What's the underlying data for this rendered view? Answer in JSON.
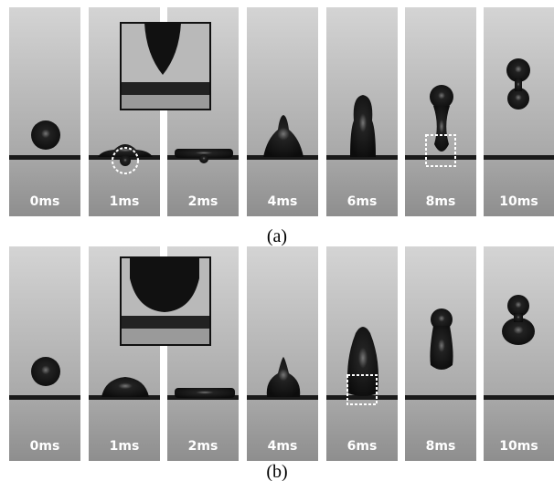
{
  "panels": [
    {
      "caption": "(a)",
      "frames": [
        "0ms",
        "1ms",
        "2ms",
        "4ms",
        "6ms",
        "8ms",
        "10ms"
      ]
    },
    {
      "caption": "(b)",
      "frames": [
        "0ms",
        "1ms",
        "2ms",
        "4ms",
        "6ms",
        "8ms",
        "10ms"
      ]
    }
  ]
}
